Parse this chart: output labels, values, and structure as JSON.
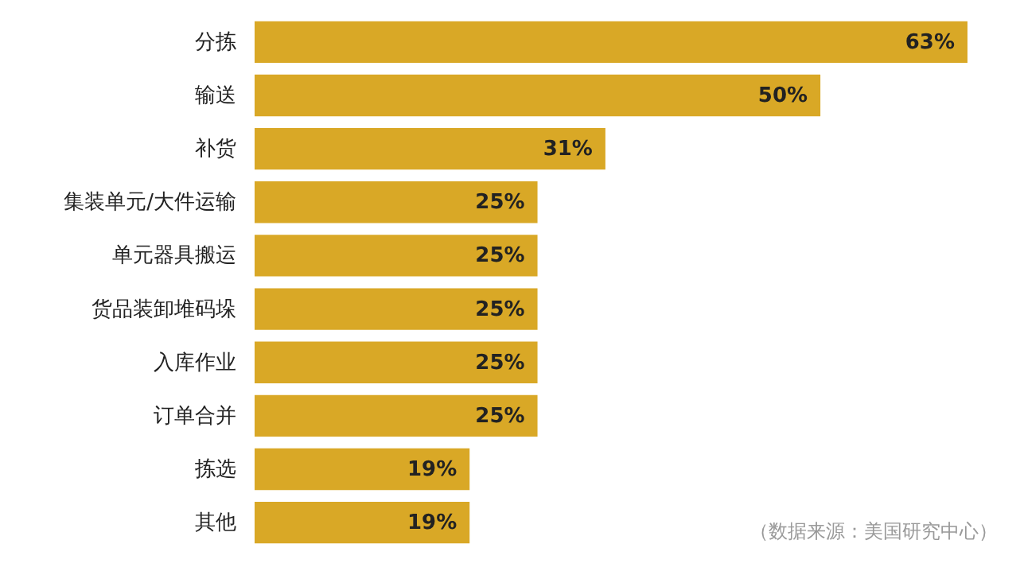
{
  "chart_data": {
    "type": "bar",
    "orientation": "horizontal",
    "categories": [
      "分拣",
      "输送",
      "补货",
      "集装单元/大件运输",
      "单元器具搬运",
      "货品装卸堆码垛",
      "入库作业",
      "订单合并",
      "拣选",
      "其他"
    ],
    "values": [
      63,
      50,
      31,
      25,
      25,
      25,
      25,
      25,
      19,
      19
    ],
    "value_labels": [
      "63%",
      "50%",
      "31%",
      "25%",
      "25%",
      "25%",
      "25%",
      "25%",
      "19%",
      "19%"
    ],
    "color": "#d9a826",
    "annotations": [
      "（数据来源：美国研究中心）"
    ]
  }
}
